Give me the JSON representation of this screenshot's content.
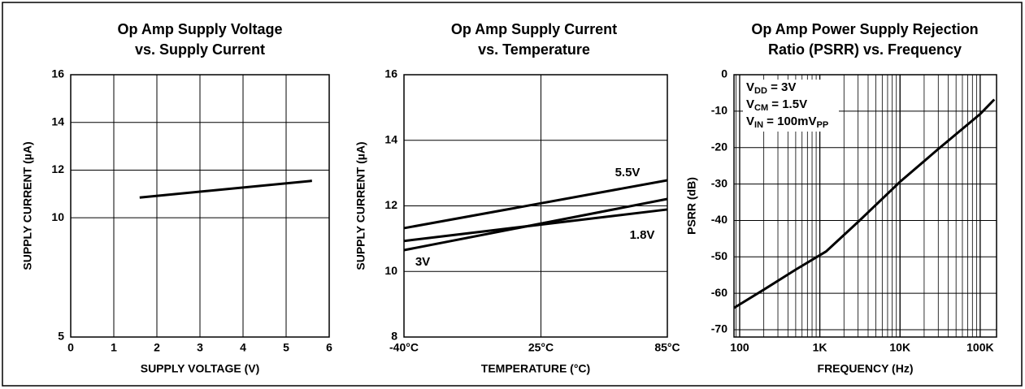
{
  "chart_data": [
    {
      "type": "line",
      "title": [
        "Op Amp Supply Voltage",
        "vs. Supply Current"
      ],
      "xlabel": "SUPPLY VOLTAGE (V)",
      "ylabel": "SUPPLY CURRENT (µA)",
      "xlim": [
        0,
        6
      ],
      "xticks": [
        0,
        1,
        2,
        3,
        4,
        5,
        6
      ],
      "ylim": [
        5,
        16
      ],
      "yticks": [
        16,
        14,
        12,
        10,
        5
      ],
      "grid": true,
      "color": "#000000",
      "x": [
        1.6,
        5.6
      ],
      "values": [
        10.85,
        11.55
      ]
    },
    {
      "type": "line",
      "title": [
        "Op Amp Supply Current",
        "vs. Temperature"
      ],
      "xlabel": "TEMPERATURE (°C)",
      "ylabel": "SUPPLY CURRENT (µA)",
      "xlim": [
        -40,
        85
      ],
      "xticks": [
        {
          "value": -40,
          "label": "-40°C"
        },
        {
          "value": 25,
          "label": "25°C"
        },
        {
          "value": 85,
          "label": "85°C"
        }
      ],
      "ylim": [
        8,
        16
      ],
      "yticks": [
        16,
        14,
        12,
        10,
        8
      ],
      "grid": true,
      "x": [
        -40,
        85
      ],
      "series": [
        {
          "name": "5.5V",
          "color": "#000000",
          "values": [
            11.32,
            12.78
          ]
        },
        {
          "name": "3V",
          "color": "#000000",
          "values": [
            10.65,
            12.21
          ]
        },
        {
          "name": "1.8V",
          "color": "#000000",
          "values": [
            10.93,
            11.89
          ]
        }
      ]
    },
    {
      "type": "line",
      "title": [
        "Op Amp Power Supply Rejection",
        "Ratio (PSRR) vs. Frequency"
      ],
      "xlabel": "FREQUENCY (Hz)",
      "ylabel": "PSRR (dB)",
      "xscale": "log",
      "xlim": [
        85,
        160000
      ],
      "xticks": [
        100,
        {
          "value": 1000,
          "label": "1K"
        },
        {
          "value": 10000,
          "label": "10K"
        },
        {
          "value": 100000,
          "label": "100K"
        }
      ],
      "ylim": [
        -72,
        0
      ],
      "yticks": [
        0,
        -10,
        -20,
        -30,
        -40,
        -50,
        -60,
        -70
      ],
      "grid": true,
      "color": "#000000",
      "x": [
        85,
        200,
        500,
        1200,
        3000,
        10000,
        30000,
        100000,
        150000
      ],
      "values": [
        -64,
        -59,
        -53.5,
        -48.5,
        -40.4,
        -29.4,
        -20.4,
        -10.8,
        -6.8
      ],
      "annotations": [
        [
          {
            "text": "V"
          },
          {
            "text": "DD",
            "sub": true
          },
          {
            "text": " = 3V"
          }
        ],
        [
          {
            "text": "V"
          },
          {
            "text": "CM",
            "sub": true
          },
          {
            "text": " = 1.5V"
          }
        ],
        [
          {
            "text": "V"
          },
          {
            "text": "IN",
            "sub": true
          },
          {
            "text": " = 100mV"
          },
          {
            "text": "PP",
            "sub": true
          }
        ]
      ]
    }
  ]
}
